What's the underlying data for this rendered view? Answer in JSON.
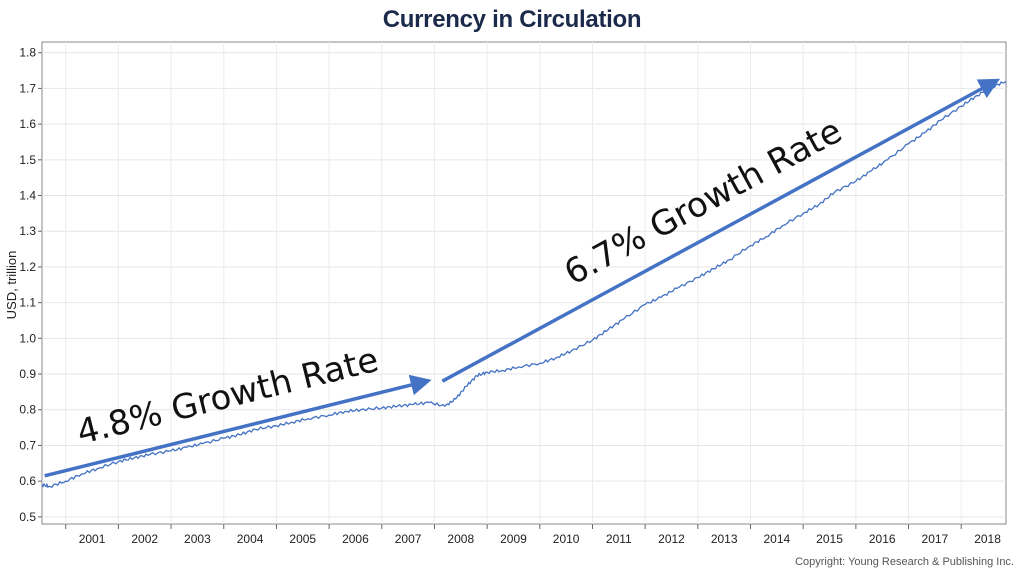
{
  "chart_data": {
    "type": "line",
    "title": "Currency in Circulation",
    "ylabel": "USD, trillion",
    "xlabel": "",
    "ylim": [
      0.48,
      1.83
    ],
    "yticks": [
      "0.5",
      "0.6",
      "0.7",
      "0.8",
      "0.9",
      "1.0",
      "1.1",
      "1.2",
      "1.3",
      "1.4",
      "1.5",
      "1.6",
      "1.7",
      "1.8"
    ],
    "xticks": [
      "2001",
      "2002",
      "2003",
      "2004",
      "2005",
      "2006",
      "2007",
      "2008",
      "2009",
      "2010",
      "2011",
      "2012",
      "2013",
      "2014",
      "2015",
      "2016",
      "2017",
      "2018"
    ],
    "xlim": [
      2000.55,
      2018.85
    ],
    "grid": true,
    "series": [
      {
        "x": [
          2000.55,
          2000.7,
          2001.0,
          2001.3,
          2001.6,
          2002.0,
          2002.3,
          2002.6,
          2003.0,
          2003.3,
          2003.6,
          2004.0,
          2004.3,
          2004.6,
          2005.0,
          2005.3,
          2005.6,
          2006.0,
          2006.3,
          2006.6,
          2007.0,
          2007.3,
          2007.6,
          2007.9,
          2008.2,
          2008.4,
          2008.6,
          2008.8,
          2009.0,
          2009.3,
          2009.6,
          2010.0,
          2010.3,
          2010.6,
          2011.0,
          2011.3,
          2011.6,
          2012.0,
          2012.3,
          2012.6,
          2013.0,
          2013.3,
          2013.6,
          2014.0,
          2014.3,
          2014.6,
          2015.0,
          2015.3,
          2015.6,
          2016.0,
          2016.3,
          2016.6,
          2017.0,
          2017.3,
          2017.6,
          2018.0,
          2018.3,
          2018.6,
          2018.85
        ],
        "values": [
          0.59,
          0.585,
          0.6,
          0.62,
          0.635,
          0.655,
          0.665,
          0.675,
          0.685,
          0.695,
          0.705,
          0.72,
          0.73,
          0.745,
          0.755,
          0.765,
          0.775,
          0.785,
          0.795,
          0.8,
          0.805,
          0.81,
          0.815,
          0.82,
          0.81,
          0.83,
          0.865,
          0.895,
          0.905,
          0.91,
          0.92,
          0.93,
          0.945,
          0.965,
          0.995,
          1.025,
          1.055,
          1.095,
          1.115,
          1.14,
          1.17,
          1.195,
          1.22,
          1.26,
          1.285,
          1.315,
          1.35,
          1.375,
          1.41,
          1.44,
          1.47,
          1.5,
          1.545,
          1.575,
          1.61,
          1.65,
          1.68,
          1.705,
          1.72
        ],
        "color": "#4472c4"
      }
    ],
    "annotations": [
      {
        "text": "4.8% Growth Rate",
        "from": [
          2000.6,
          0.615
        ],
        "to": [
          2007.85,
          0.88
        ]
      },
      {
        "text": "6.7% Growth Rate",
        "from": [
          2008.15,
          0.88
        ],
        "to": [
          2018.65,
          1.72
        ]
      }
    ]
  },
  "copyright": "Copyright: Young Research & Publishing Inc."
}
